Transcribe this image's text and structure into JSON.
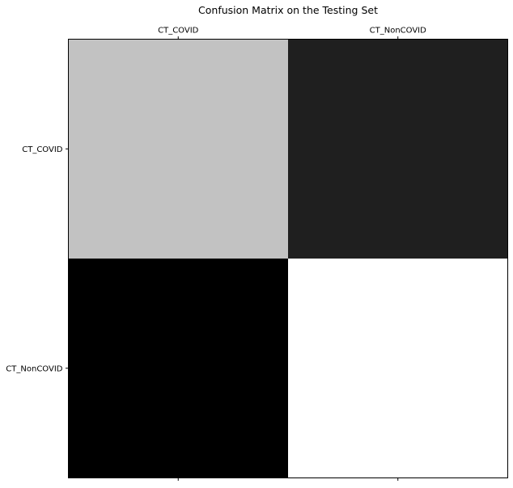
{
  "chart_data": {
    "type": "heatmap",
    "title": "Confusion Matrix on the Testing Set",
    "x_categories": [
      "CT_COVID",
      "CT_NonCOVID"
    ],
    "y_categories": [
      "CT_COVID",
      "CT_NonCOVID"
    ],
    "values": [
      [
        0.76,
        0.12
      ],
      [
        0.0,
        1.0
      ]
    ],
    "colormap": "gray",
    "vmin": 0,
    "vmax": 1,
    "xlabel": "",
    "ylabel": "",
    "x_tick_position": "top",
    "grid": false,
    "legend": "none"
  }
}
